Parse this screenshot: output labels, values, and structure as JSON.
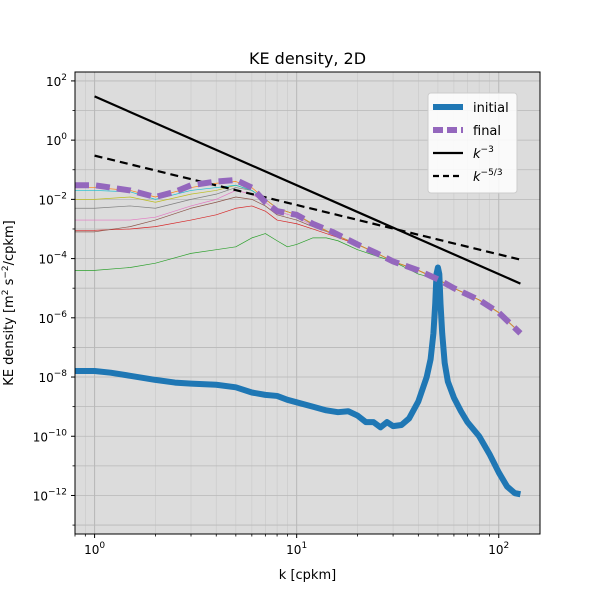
{
  "chart_data": {
    "type": "line",
    "title": "KE density, 2D",
    "xlabel": "k [cpkm]",
    "ylabel": "KE density [m",
    "ylabel_sup": "2",
    "ylabel_mid": " s",
    "ylabel_sup2": "−2",
    "ylabel_end": "/cpkm]",
    "xscale": "log",
    "yscale": "log",
    "xlim": [
      0.8,
      160
    ],
    "ylim": [
      5e-14,
      200
    ],
    "grid": true,
    "background": "#dcdcdc",
    "legend_position": "upper-right",
    "x_ticks": [
      {
        "base": "10",
        "exp": "0",
        "value": 1
      },
      {
        "base": "10",
        "exp": "1",
        "value": 10
      },
      {
        "base": "10",
        "exp": "2",
        "value": 100
      }
    ],
    "y_ticks": [
      {
        "base": "10",
        "exp": "2",
        "value": 100
      },
      {
        "base": "10",
        "exp": "0",
        "value": 1
      },
      {
        "base": "10",
        "exp": "−2",
        "value": 0.01
      },
      {
        "base": "10",
        "exp": "−4",
        "value": 0.0001
      },
      {
        "base": "10",
        "exp": "−6",
        "value": 1e-06
      },
      {
        "base": "10",
        "exp": "−8",
        "value": 1e-08
      },
      {
        "base": "10",
        "exp": "−10",
        "value": 1e-10
      },
      {
        "base": "10",
        "exp": "−12",
        "value": 1e-12
      }
    ],
    "legend": [
      {
        "label": "initial",
        "sup": "",
        "style": "thick-solid",
        "color": "#1f77b4"
      },
      {
        "label": "final",
        "sup": "",
        "style": "thick-dashed",
        "color": "#9467bd"
      },
      {
        "label": "k",
        "sup": "−3",
        "style": "solid",
        "color": "#000000"
      },
      {
        "label": "k",
        "sup": "−5/3",
        "style": "dashed",
        "color": "#000000"
      }
    ],
    "series": [
      {
        "name": "initial",
        "color": "#1f77b4",
        "width": 6,
        "dash": "",
        "points": [
          [
            0.8,
            1.6e-08
          ],
          [
            1,
            1.6e-08
          ],
          [
            1.2,
            1.4e-08
          ],
          [
            1.5,
            1.1e-08
          ],
          [
            2,
            8e-09
          ],
          [
            2.5,
            6.5e-09
          ],
          [
            3,
            6e-09
          ],
          [
            4,
            5.5e-09
          ],
          [
            5,
            4.5e-09
          ],
          [
            6,
            3e-09
          ],
          [
            7,
            2.5e-09
          ],
          [
            8,
            2.3e-09
          ],
          [
            9,
            1.7e-09
          ],
          [
            10,
            1.4e-09
          ],
          [
            12,
            1e-09
          ],
          [
            14,
            7.5e-10
          ],
          [
            16,
            6.5e-10
          ],
          [
            18,
            7e-10
          ],
          [
            20,
            5e-10
          ],
          [
            22,
            3e-10
          ],
          [
            24,
            3e-10
          ],
          [
            26,
            2e-10
          ],
          [
            28,
            3e-10
          ],
          [
            30,
            2.2e-10
          ],
          [
            33,
            2.4e-10
          ],
          [
            36,
            4e-10
          ],
          [
            40,
            1.5e-09
          ],
          [
            44,
            1e-08
          ],
          [
            46,
            4e-08
          ],
          [
            47.5,
            3e-07
          ],
          [
            48.5,
            3e-06
          ],
          [
            49.2,
            3e-05
          ],
          [
            50,
            5e-05
          ],
          [
            50.8,
            3e-05
          ],
          [
            51.5,
            3e-06
          ],
          [
            52.5,
            3e-07
          ],
          [
            54,
            3e-08
          ],
          [
            56,
            7e-09
          ],
          [
            60,
            2e-09
          ],
          [
            65,
            7e-10
          ],
          [
            70,
            3e-10
          ],
          [
            80,
            1e-10
          ],
          [
            90,
            2.5e-11
          ],
          [
            100,
            6e-12
          ],
          [
            110,
            2e-12
          ],
          [
            120,
            1.2e-12
          ],
          [
            128,
            1.1e-12
          ]
        ]
      },
      {
        "name": "final",
        "color": "#9467bd",
        "width": 6,
        "dash": "14,7",
        "points": [
          [
            0.8,
            0.03
          ],
          [
            1,
            0.03
          ],
          [
            1.5,
            0.02
          ],
          [
            2,
            0.012
          ],
          [
            2.5,
            0.018
          ],
          [
            3,
            0.03
          ],
          [
            4,
            0.04
          ],
          [
            5,
            0.045
          ],
          [
            6,
            0.025
          ],
          [
            7,
            0.008
          ],
          [
            8,
            0.004
          ],
          [
            10,
            0.003
          ],
          [
            12,
            0.0015
          ],
          [
            15,
            0.0008
          ],
          [
            20,
            0.0003
          ],
          [
            25,
            0.00015
          ],
          [
            30,
            8e-05
          ],
          [
            40,
            4e-05
          ],
          [
            50,
            2e-05
          ],
          [
            60,
            1e-05
          ],
          [
            80,
            4e-06
          ],
          [
            100,
            1.5e-06
          ],
          [
            128,
            3e-07
          ]
        ]
      },
      {
        "name": "k^-3",
        "color": "#000000",
        "width": 2.2,
        "dash": "",
        "points": [
          [
            1,
            30
          ],
          [
            128,
            1.43e-05
          ]
        ]
      },
      {
        "name": "k^-5/3",
        "color": "#000000",
        "width": 2.2,
        "dash": "8,5",
        "points": [
          [
            1,
            0.3
          ],
          [
            128,
            9.2e-05
          ]
        ]
      },
      {
        "name": "intermediate-1",
        "color": "#2ca02c",
        "width": 0.7,
        "dash": "",
        "points": [
          [
            0.8,
            4e-05
          ],
          [
            1,
            4e-05
          ],
          [
            1.5,
            5e-05
          ],
          [
            2,
            7e-05
          ],
          [
            3,
            0.00015
          ],
          [
            4,
            0.0002
          ],
          [
            5,
            0.00025
          ],
          [
            6,
            0.0005
          ],
          [
            7,
            0.0007
          ],
          [
            8,
            0.0004
          ],
          [
            9,
            0.00025
          ],
          [
            10,
            0.0003
          ],
          [
            12,
            0.0005
          ],
          [
            14,
            0.0005
          ],
          [
            16,
            0.0004
          ],
          [
            20,
            0.0002
          ],
          [
            25,
            0.00012
          ],
          [
            30,
            8e-05
          ],
          [
            40,
            3e-05
          ],
          [
            50,
            2e-05
          ],
          [
            60,
            1e-05
          ],
          [
            80,
            4e-06
          ],
          [
            100,
            1.5e-06
          ],
          [
            128,
            3e-07
          ]
        ]
      },
      {
        "name": "intermediate-2",
        "color": "#d62728",
        "width": 0.7,
        "dash": "",
        "points": [
          [
            0.8,
            0.0009
          ],
          [
            1,
            0.0009
          ],
          [
            1.5,
            0.001
          ],
          [
            2,
            0.0012
          ],
          [
            3,
            0.002
          ],
          [
            4,
            0.003
          ],
          [
            5,
            0.005
          ],
          [
            6,
            0.006
          ],
          [
            7,
            0.004
          ],
          [
            8,
            0.002
          ],
          [
            10,
            0.0015
          ],
          [
            12,
            0.001
          ],
          [
            15,
            0.0006
          ],
          [
            20,
            0.0003
          ],
          [
            25,
            0.00015
          ],
          [
            30,
            8e-05
          ],
          [
            40,
            4e-05
          ],
          [
            50,
            2e-05
          ],
          [
            60,
            1e-05
          ],
          [
            80,
            4e-06
          ],
          [
            100,
            1.5e-06
          ],
          [
            128,
            3e-07
          ]
        ]
      },
      {
        "name": "intermediate-3",
        "color": "#8c564b",
        "width": 0.7,
        "dash": "",
        "points": [
          [
            0.8,
            0.0008
          ],
          [
            1,
            0.0008
          ],
          [
            1.5,
            0.0012
          ],
          [
            2,
            0.002
          ],
          [
            3,
            0.005
          ],
          [
            4,
            0.008
          ],
          [
            5,
            0.012
          ],
          [
            6,
            0.01
          ],
          [
            7,
            0.006
          ],
          [
            8,
            0.003
          ],
          [
            10,
            0.002
          ],
          [
            12,
            0.0012
          ],
          [
            15,
            0.0007
          ],
          [
            20,
            0.0003
          ],
          [
            25,
            0.00015
          ],
          [
            30,
            8e-05
          ],
          [
            40,
            4e-05
          ],
          [
            50,
            2e-05
          ],
          [
            60,
            1e-05
          ],
          [
            80,
            4e-06
          ],
          [
            100,
            1.5e-06
          ],
          [
            128,
            3e-07
          ]
        ]
      },
      {
        "name": "intermediate-4",
        "color": "#e377c2",
        "width": 0.7,
        "dash": "",
        "points": [
          [
            0.8,
            0.002
          ],
          [
            1,
            0.002
          ],
          [
            1.5,
            0.002
          ],
          [
            2,
            0.0025
          ],
          [
            3,
            0.006
          ],
          [
            4,
            0.01
          ],
          [
            5,
            0.02
          ],
          [
            6,
            0.015
          ],
          [
            7,
            0.008
          ],
          [
            8,
            0.004
          ],
          [
            10,
            0.0025
          ],
          [
            12,
            0.0013
          ],
          [
            15,
            0.0007
          ],
          [
            20,
            0.0003
          ],
          [
            25,
            0.00015
          ],
          [
            30,
            8e-05
          ],
          [
            40,
            4e-05
          ],
          [
            50,
            2e-05
          ],
          [
            60,
            1e-05
          ],
          [
            80,
            4e-06
          ],
          [
            100,
            1.5e-06
          ],
          [
            128,
            3e-07
          ]
        ]
      },
      {
        "name": "intermediate-5",
        "color": "#7f7f7f",
        "width": 0.7,
        "dash": "",
        "points": [
          [
            0.8,
            0.005
          ],
          [
            1,
            0.005
          ],
          [
            1.5,
            0.006
          ],
          [
            2,
            0.005
          ],
          [
            3,
            0.01
          ],
          [
            4,
            0.015
          ],
          [
            5,
            0.025
          ],
          [
            6,
            0.02
          ],
          [
            7,
            0.01
          ],
          [
            8,
            0.005
          ],
          [
            10,
            0.003
          ],
          [
            12,
            0.0014
          ],
          [
            15,
            0.0007
          ],
          [
            20,
            0.0003
          ],
          [
            25,
            0.00015
          ],
          [
            30,
            8e-05
          ],
          [
            40,
            4e-05
          ],
          [
            50,
            2e-05
          ],
          [
            60,
            1e-05
          ],
          [
            80,
            4e-06
          ],
          [
            100,
            1.5e-06
          ],
          [
            128,
            3e-07
          ]
        ]
      },
      {
        "name": "intermediate-6",
        "color": "#bcbd22",
        "width": 0.7,
        "dash": "",
        "points": [
          [
            0.8,
            0.01
          ],
          [
            1,
            0.01
          ],
          [
            1.5,
            0.012
          ],
          [
            2,
            0.008
          ],
          [
            3,
            0.015
          ],
          [
            4,
            0.02
          ],
          [
            5,
            0.03
          ],
          [
            6,
            0.02
          ],
          [
            7,
            0.01
          ],
          [
            8,
            0.005
          ],
          [
            10,
            0.003
          ],
          [
            12,
            0.0015
          ],
          [
            15,
            0.0007
          ],
          [
            20,
            0.0003
          ],
          [
            25,
            0.00015
          ],
          [
            30,
            8e-05
          ],
          [
            40,
            4e-05
          ],
          [
            50,
            2e-05
          ],
          [
            60,
            1e-05
          ],
          [
            80,
            4e-06
          ],
          [
            100,
            1.5e-06
          ],
          [
            128,
            3e-07
          ]
        ]
      },
      {
        "name": "intermediate-7",
        "color": "#17becf",
        "width": 0.7,
        "dash": "",
        "points": [
          [
            0.8,
            0.02
          ],
          [
            1,
            0.02
          ],
          [
            1.5,
            0.018
          ],
          [
            2,
            0.01
          ],
          [
            3,
            0.02
          ],
          [
            4,
            0.025
          ],
          [
            5,
            0.03
          ],
          [
            6,
            0.02
          ],
          [
            7,
            0.01
          ],
          [
            8,
            0.005
          ],
          [
            10,
            0.003
          ],
          [
            12,
            0.0015
          ],
          [
            15,
            0.0007
          ],
          [
            20,
            0.0003
          ],
          [
            25,
            0.00015
          ],
          [
            30,
            8e-05
          ],
          [
            40,
            4e-05
          ],
          [
            50,
            2e-05
          ],
          [
            60,
            1e-05
          ],
          [
            80,
            4e-06
          ],
          [
            100,
            1.5e-06
          ],
          [
            128,
            3e-07
          ]
        ]
      },
      {
        "name": "intermediate-8",
        "color": "#ff7f0e",
        "width": 0.7,
        "dash": "",
        "points": [
          [
            0.8,
            0.025
          ],
          [
            1,
            0.025
          ],
          [
            1.5,
            0.02
          ],
          [
            2,
            0.012
          ],
          [
            3,
            0.025
          ],
          [
            4,
            0.035
          ],
          [
            5,
            0.04
          ],
          [
            6,
            0.025
          ],
          [
            7,
            0.01
          ],
          [
            8,
            0.005
          ],
          [
            10,
            0.003
          ],
          [
            12,
            0.0015
          ],
          [
            15,
            0.0007
          ],
          [
            20,
            0.0003
          ],
          [
            25,
            0.00015
          ],
          [
            30,
            8e-05
          ],
          [
            40,
            4e-05
          ],
          [
            50,
            2e-05
          ],
          [
            60,
            1e-05
          ],
          [
            80,
            4e-06
          ],
          [
            100,
            1.5e-06
          ],
          [
            128,
            3e-07
          ]
        ]
      }
    ]
  }
}
